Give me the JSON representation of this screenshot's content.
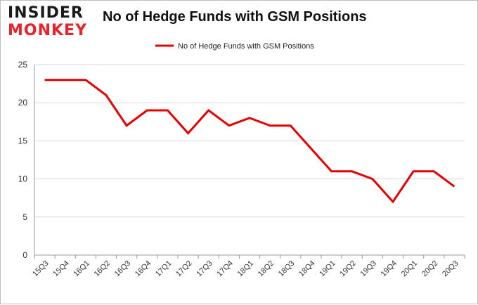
{
  "logo": {
    "line1": "INSIDER",
    "line2": "MONKEY"
  },
  "chart_data": {
    "type": "line",
    "title": "No of Hedge Funds with GSM Positions",
    "categories": [
      "15Q3",
      "15Q4",
      "16Q1",
      "16Q2",
      "16Q3",
      "16Q4",
      "17Q1",
      "17Q2",
      "17Q3",
      "17Q4",
      "18Q1",
      "18Q2",
      "18Q3",
      "18Q4",
      "19Q1",
      "19Q2",
      "19Q3",
      "19Q4",
      "20Q1",
      "20Q2",
      "20Q3"
    ],
    "series": [
      {
        "name": "No of Hedge Funds with GSM Positions",
        "color": "#e80000",
        "values": [
          23,
          23,
          23,
          21,
          17,
          19,
          19,
          16,
          19,
          17,
          18,
          17,
          17,
          14,
          11,
          11,
          10,
          7,
          11,
          11,
          9
        ]
      }
    ],
    "ylim": [
      0,
      25
    ],
    "yticks": [
      0,
      5,
      10,
      15,
      20,
      25
    ],
    "xlabel": "",
    "ylabel": "",
    "grid": true,
    "legend": "top-center"
  }
}
